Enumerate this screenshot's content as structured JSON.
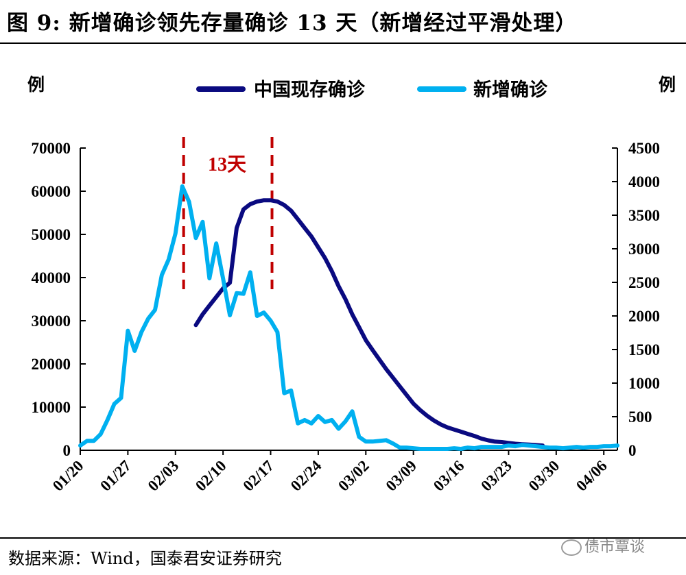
{
  "title": "图 9: 新增确诊领先存量确诊 13 天（新增经过平滑处理）",
  "source": "数据来源：Wind，国泰君安证券研究",
  "watermark": "债市覃谈",
  "chart_data": {
    "type": "line",
    "left_axis": {
      "unit": "例",
      "range": [
        0,
        70000
      ],
      "ticks": [
        "0",
        "10000",
        "20000",
        "30000",
        "40000",
        "50000",
        "60000",
        "70000"
      ]
    },
    "right_axis": {
      "unit": "例",
      "range": [
        0,
        4500
      ],
      "ticks": [
        "0",
        "500",
        "1000",
        "1500",
        "2000",
        "2500",
        "3000",
        "3500",
        "4000",
        "4500"
      ]
    },
    "x_ticks": [
      "01/20",
      "01/27",
      "02/03",
      "02/10",
      "02/17",
      "02/24",
      "03/02",
      "03/09",
      "03/16",
      "03/23",
      "03/30",
      "04/06"
    ],
    "x_range_days": [
      0,
      79
    ],
    "legend_position": "top",
    "annotation": {
      "text": "13天",
      "marker_days": [
        15,
        28
      ]
    },
    "series": [
      {
        "name": "中国现存确诊",
        "axis": "left",
        "color": "#0a0a80",
        "points": [
          [
            17,
            29000
          ],
          [
            18,
            31500
          ],
          [
            19,
            33500
          ],
          [
            20,
            35500
          ],
          [
            21,
            37500
          ],
          [
            22,
            38800
          ],
          [
            23,
            51500
          ],
          [
            24,
            55800
          ],
          [
            25,
            57000
          ],
          [
            26,
            57600
          ],
          [
            27,
            57900
          ],
          [
            28,
            57900
          ],
          [
            29,
            57600
          ],
          [
            30,
            56800
          ],
          [
            31,
            55500
          ],
          [
            32,
            53500
          ],
          [
            33,
            51500
          ],
          [
            34,
            49500
          ],
          [
            35,
            47000
          ],
          [
            36,
            44500
          ],
          [
            37,
            41500
          ],
          [
            38,
            38000
          ],
          [
            39,
            35000
          ],
          [
            40,
            31500
          ],
          [
            41,
            28500
          ],
          [
            42,
            25500
          ],
          [
            43,
            23200
          ],
          [
            44,
            21000
          ],
          [
            45,
            18800
          ],
          [
            46,
            16800
          ],
          [
            47,
            14800
          ],
          [
            48,
            12800
          ],
          [
            49,
            10800
          ],
          [
            50,
            9300
          ],
          [
            51,
            8000
          ],
          [
            52,
            6900
          ],
          [
            53,
            6000
          ],
          [
            54,
            5300
          ],
          [
            55,
            4800
          ],
          [
            56,
            4300
          ],
          [
            57,
            3800
          ],
          [
            58,
            3300
          ],
          [
            59,
            2700
          ],
          [
            60,
            2300
          ],
          [
            61,
            2000
          ],
          [
            62,
            1900
          ],
          [
            63,
            1700
          ],
          [
            64,
            1500
          ],
          [
            65,
            1400
          ],
          [
            66,
            1300
          ],
          [
            67,
            1200
          ],
          [
            68,
            1100
          ]
        ]
      },
      {
        "name": "新增确诊",
        "axis": "right",
        "color": "#00b0f0",
        "points": [
          [
            0,
            70
          ],
          [
            1,
            140
          ],
          [
            2,
            140
          ],
          [
            3,
            240
          ],
          [
            4,
            450
          ],
          [
            5,
            690
          ],
          [
            6,
            780
          ],
          [
            7,
            1780
          ],
          [
            8,
            1480
          ],
          [
            9,
            1760
          ],
          [
            10,
            1960
          ],
          [
            11,
            2090
          ],
          [
            12,
            2610
          ],
          [
            13,
            2840
          ],
          [
            14,
            3230
          ],
          [
            15,
            3930
          ],
          [
            16,
            3700
          ],
          [
            17,
            3160
          ],
          [
            18,
            3400
          ],
          [
            19,
            2560
          ],
          [
            20,
            3080
          ],
          [
            21,
            2560
          ],
          [
            22,
            2010
          ],
          [
            23,
            2340
          ],
          [
            24,
            2330
          ],
          [
            25,
            2650
          ],
          [
            26,
            2000
          ],
          [
            27,
            2050
          ],
          [
            28,
            1930
          ],
          [
            29,
            1760
          ],
          [
            30,
            850
          ],
          [
            31,
            890
          ],
          [
            32,
            400
          ],
          [
            33,
            450
          ],
          [
            34,
            400
          ],
          [
            35,
            510
          ],
          [
            36,
            420
          ],
          [
            37,
            450
          ],
          [
            38,
            320
          ],
          [
            39,
            430
          ],
          [
            40,
            580
          ],
          [
            41,
            200
          ],
          [
            42,
            130
          ],
          [
            43,
            130
          ],
          [
            44,
            140
          ],
          [
            45,
            150
          ],
          [
            46,
            100
          ],
          [
            47,
            40
          ],
          [
            48,
            40
          ],
          [
            49,
            30
          ],
          [
            50,
            20
          ],
          [
            51,
            20
          ],
          [
            52,
            20
          ],
          [
            53,
            20
          ],
          [
            54,
            20
          ],
          [
            55,
            30
          ],
          [
            56,
            20
          ],
          [
            57,
            40
          ],
          [
            58,
            30
          ],
          [
            59,
            50
          ],
          [
            60,
            50
          ],
          [
            61,
            50
          ],
          [
            62,
            50
          ],
          [
            63,
            70
          ],
          [
            64,
            60
          ],
          [
            65,
            80
          ],
          [
            66,
            70
          ],
          [
            67,
            60
          ],
          [
            68,
            50
          ],
          [
            69,
            40
          ],
          [
            70,
            40
          ],
          [
            71,
            30
          ],
          [
            72,
            40
          ],
          [
            73,
            50
          ],
          [
            74,
            40
          ],
          [
            75,
            50
          ],
          [
            76,
            50
          ],
          [
            77,
            60
          ],
          [
            78,
            60
          ],
          [
            79,
            70
          ]
        ]
      }
    ]
  }
}
